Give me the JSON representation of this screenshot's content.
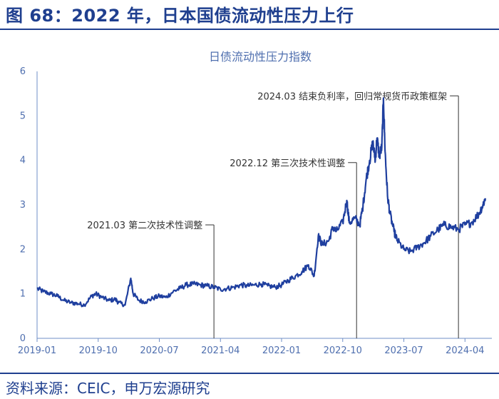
{
  "figure": {
    "title": "图 68：2022 年，日本国债流动性压力上行",
    "source": "资料来源：CEIC，申万宏源研究"
  },
  "chart_data": {
    "type": "line",
    "title": "日债流动性压力指数",
    "xlabel": "",
    "ylabel": "",
    "x_range": [
      "2019-01",
      "2024-06"
    ],
    "ylim": [
      0,
      6
    ],
    "y_ticks": [
      "0",
      "1",
      "2",
      "3",
      "4",
      "5",
      "6"
    ],
    "x_ticks": [
      {
        "label": "2019-01",
        "t": 2019.0
      },
      {
        "label": "2019-10",
        "t": 2019.75
      },
      {
        "label": "2020-07",
        "t": 2020.5
      },
      {
        "label": "2021-04",
        "t": 2021.25
      },
      {
        "label": "2022-01",
        "t": 2022.0
      },
      {
        "label": "2022-10",
        "t": 2022.75
      },
      {
        "label": "2023-07",
        "t": 2023.5
      },
      {
        "label": "2024-04",
        "t": 2024.25
      }
    ],
    "grid": false,
    "legend": "none",
    "line_color": "#1f3f9f",
    "series": [
      {
        "name": "",
        "points": [
          [
            2019.0,
            1.12
          ],
          [
            2019.08,
            1.05
          ],
          [
            2019.17,
            1.0
          ],
          [
            2019.25,
            0.95
          ],
          [
            2019.33,
            0.85
          ],
          [
            2019.42,
            0.8
          ],
          [
            2019.5,
            0.78
          ],
          [
            2019.58,
            0.75
          ],
          [
            2019.67,
            0.95
          ],
          [
            2019.72,
            1.0
          ],
          [
            2019.8,
            0.92
          ],
          [
            2019.88,
            0.85
          ],
          [
            2019.96,
            0.88
          ],
          [
            2020.0,
            0.8
          ],
          [
            2020.08,
            0.75
          ],
          [
            2020.15,
            1.35
          ],
          [
            2020.18,
            1.0
          ],
          [
            2020.25,
            0.85
          ],
          [
            2020.33,
            0.82
          ],
          [
            2020.42,
            0.9
          ],
          [
            2020.5,
            0.95
          ],
          [
            2020.58,
            0.92
          ],
          [
            2020.67,
            1.05
          ],
          [
            2020.75,
            1.12
          ],
          [
            2020.83,
            1.2
          ],
          [
            2020.92,
            1.22
          ],
          [
            2021.0,
            1.2
          ],
          [
            2021.08,
            1.18
          ],
          [
            2021.17,
            1.15
          ],
          [
            2021.25,
            1.1
          ],
          [
            2021.33,
            1.12
          ],
          [
            2021.42,
            1.15
          ],
          [
            2021.5,
            1.2
          ],
          [
            2021.58,
            1.18
          ],
          [
            2021.67,
            1.2
          ],
          [
            2021.75,
            1.22
          ],
          [
            2021.83,
            1.18
          ],
          [
            2021.92,
            1.15
          ],
          [
            2022.0,
            1.2
          ],
          [
            2022.08,
            1.3
          ],
          [
            2022.17,
            1.4
          ],
          [
            2022.25,
            1.5
          ],
          [
            2022.33,
            1.65
          ],
          [
            2022.4,
            1.4
          ],
          [
            2022.45,
            2.3
          ],
          [
            2022.5,
            2.1
          ],
          [
            2022.58,
            2.2
          ],
          [
            2022.63,
            2.5
          ],
          [
            2022.67,
            2.4
          ],
          [
            2022.75,
            2.6
          ],
          [
            2022.8,
            3.1
          ],
          [
            2022.83,
            2.6
          ],
          [
            2022.9,
            2.7
          ],
          [
            2022.96,
            2.55
          ],
          [
            2023.0,
            3.0
          ],
          [
            2023.04,
            3.6
          ],
          [
            2023.08,
            4.0
          ],
          [
            2023.12,
            4.4
          ],
          [
            2023.15,
            4.0
          ],
          [
            2023.17,
            4.5
          ],
          [
            2023.2,
            4.1
          ],
          [
            2023.23,
            4.3
          ],
          [
            2023.25,
            5.4
          ],
          [
            2023.27,
            4.2
          ],
          [
            2023.3,
            3.2
          ],
          [
            2023.33,
            2.8
          ],
          [
            2023.38,
            2.4
          ],
          [
            2023.42,
            2.2
          ],
          [
            2023.5,
            2.0
          ],
          [
            2023.58,
            1.95
          ],
          [
            2023.67,
            2.05
          ],
          [
            2023.75,
            2.15
          ],
          [
            2023.83,
            2.3
          ],
          [
            2023.92,
            2.45
          ],
          [
            2024.0,
            2.55
          ],
          [
            2024.08,
            2.5
          ],
          [
            2024.17,
            2.45
          ],
          [
            2024.25,
            2.55
          ],
          [
            2024.33,
            2.6
          ],
          [
            2024.42,
            2.8
          ],
          [
            2024.47,
            3.0
          ],
          [
            2024.5,
            3.15
          ]
        ]
      }
    ],
    "annotations": [
      {
        "text": "2021.03 第二次技术性调整",
        "t": 2021.17,
        "y": 2.55
      },
      {
        "text": "2022.12 第三次技术性调整",
        "t": 2022.92,
        "y": 3.95
      },
      {
        "text": "2024.03 结束负利率，回归常规货币政策框架",
        "t": 2024.17,
        "y": 5.45
      }
    ]
  }
}
